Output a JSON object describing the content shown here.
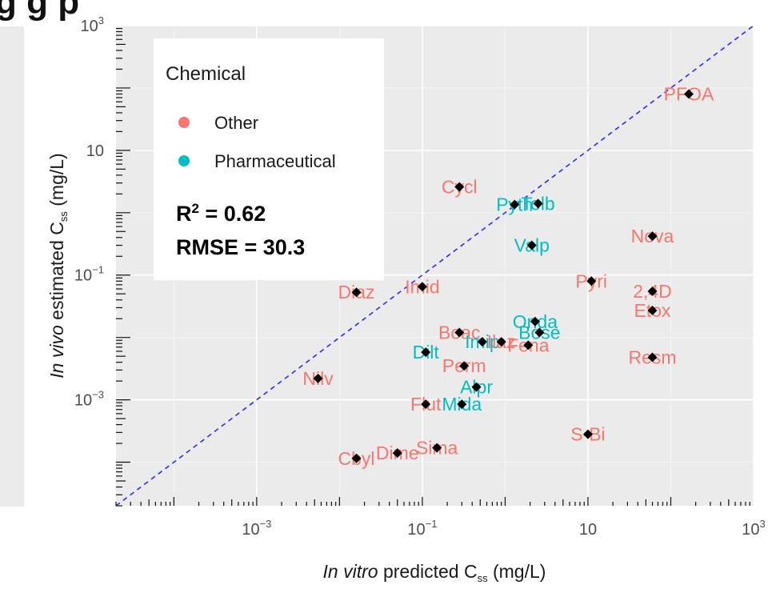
{
  "header": {
    "title_fragment": "g                g              p"
  },
  "chart_data": {
    "type": "scatter",
    "xlabel_prefix": "In vitro",
    "xlabel_rest": " predicted C",
    "xlabel_sub": "ss",
    "xlabel_unit": " (mg/L)",
    "ylabel_prefix": "In vivo",
    "ylabel_rest": " estimated C",
    "ylabel_sub": "ss",
    "ylabel_unit": " (mg/L)",
    "x_scale": "log10",
    "y_scale": "log10",
    "xlim": [
      2e-05,
      1000
    ],
    "ylim": [
      2e-05,
      1000
    ],
    "x_ticks": [
      {
        "value": 0.001,
        "base": "10",
        "exp": "−3"
      },
      {
        "value": 0.1,
        "base": "10",
        "exp": "−1"
      },
      {
        "value": 10,
        "base": "10",
        "exp": ""
      },
      {
        "value": 1000,
        "base": "10",
        "exp": "3"
      }
    ],
    "y_ticks": [
      {
        "value": 0.001,
        "base": "10",
        "exp": "−3"
      },
      {
        "value": 0.1,
        "base": "10",
        "exp": "−1"
      },
      {
        "value": 10,
        "base": "10",
        "exp": ""
      },
      {
        "value": 1000,
        "base": "10",
        "exp": "3"
      }
    ],
    "grid": true,
    "identity_line": true,
    "legend": {
      "title": "Chemical",
      "placement": "top-left",
      "entries": [
        {
          "name": "Other",
          "color": "#F8766D"
        },
        {
          "name": "Pharmaceutical",
          "color": "#00BFC4"
        }
      ]
    },
    "stats": {
      "r2_label": "R",
      "r2_sup": "2",
      "r2_value": " = 0.62",
      "rmse": "RMSE = 30.3"
    },
    "points": [
      {
        "label": "PFOA",
        "x": 165,
        "y": 80,
        "group": "Other"
      },
      {
        "label": "Cycl",
        "x": 0.28,
        "y": 2.6,
        "group": "Other"
      },
      {
        "label": "Pyth",
        "x": 1.3,
        "y": 1.35,
        "group": "Pharmaceutical"
      },
      {
        "label": "Tolb",
        "x": 2.5,
        "y": 1.4,
        "group": "Pharmaceutical"
      },
      {
        "label": "Nova",
        "x": 60,
        "y": 0.42,
        "group": "Other"
      },
      {
        "label": "Valp",
        "x": 2.1,
        "y": 0.3,
        "group": "Pharmaceutical"
      },
      {
        "label": "Imid",
        "x": 0.1,
        "y": 0.065,
        "group": "Other"
      },
      {
        "label": "Diaz",
        "x": 0.016,
        "y": 0.053,
        "group": "Other"
      },
      {
        "label": "Pyri",
        "x": 11,
        "y": 0.08,
        "group": "Other"
      },
      {
        "label": "2,4D",
        "x": 60,
        "y": 0.055,
        "group": "Other"
      },
      {
        "label": "Etox",
        "x": 60,
        "y": 0.027,
        "group": "Other"
      },
      {
        "label": "Onda",
        "x": 2.3,
        "y": 0.018,
        "group": "Pharmaceutical"
      },
      {
        "label": "Bose",
        "x": 2.6,
        "y": 0.012,
        "group": "Pharmaceutical"
      },
      {
        "label": "Boac",
        "x": 0.28,
        "y": 0.012,
        "group": "Other"
      },
      {
        "label": "Imip",
        "x": 0.53,
        "y": 0.0085,
        "group": "Pharmaceutical"
      },
      {
        "label": "Ilaz",
        "x": 0.9,
        "y": 0.0085,
        "group": "Other"
      },
      {
        "label": "Fena",
        "x": 1.9,
        "y": 0.0075,
        "group": "Other"
      },
      {
        "label": "Dilt",
        "x": 0.11,
        "y": 0.0058,
        "group": "Pharmaceutical"
      },
      {
        "label": "Resm",
        "x": 60,
        "y": 0.0048,
        "group": "Other"
      },
      {
        "label": "Perm",
        "x": 0.32,
        "y": 0.0035,
        "group": "Other"
      },
      {
        "label": "Nilv",
        "x": 0.0055,
        "y": 0.0022,
        "group": "Other"
      },
      {
        "label": "Alpr",
        "x": 0.45,
        "y": 0.0016,
        "group": "Pharmaceutical"
      },
      {
        "label": "Flut",
        "x": 0.11,
        "y": 0.00085,
        "group": "Other"
      },
      {
        "label": "Mida",
        "x": 0.3,
        "y": 0.00085,
        "group": "Pharmaceutical"
      },
      {
        "label": "S-Bi",
        "x": 10,
        "y": 0.00028,
        "group": "Other"
      },
      {
        "label": "Sima",
        "x": 0.15,
        "y": 0.00017,
        "group": "Other"
      },
      {
        "label": "Dime",
        "x": 0.05,
        "y": 0.00014,
        "group": "Other"
      },
      {
        "label": "Cbyl",
        "x": 0.016,
        "y": 0.000115,
        "group": "Other"
      }
    ]
  }
}
